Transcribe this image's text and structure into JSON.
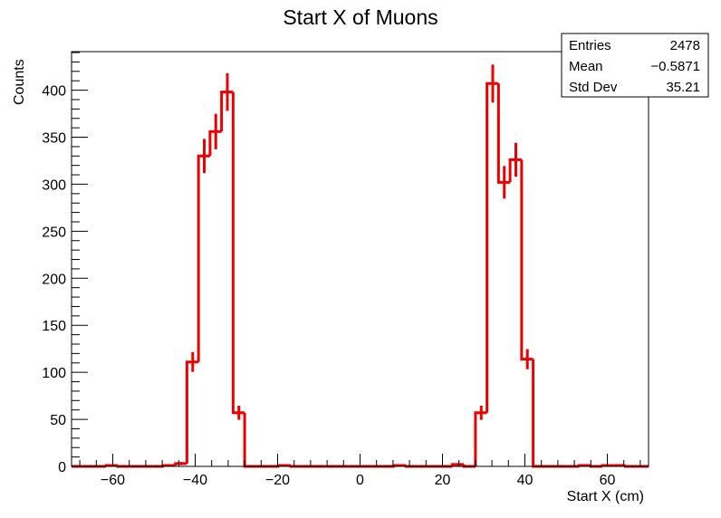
{
  "chart_data": {
    "type": "bar",
    "title": "Start X of Muons",
    "xlabel": "Start X (cm)",
    "ylabel": "Counts",
    "xlim": [
      -70,
      70
    ],
    "ylim": [
      0,
      441
    ],
    "bin_width": 2.8,
    "bin_lows": [
      -70,
      -67.2,
      -64.4,
      -61.6,
      -58.8,
      -56,
      -53.2,
      -50.4,
      -47.6,
      -44.8,
      -42,
      -39.2,
      -36.4,
      -33.6,
      -30.8,
      -28,
      -25.2,
      -22.4,
      -19.6,
      -16.8,
      -14,
      -11.2,
      -8.4,
      -5.6,
      -2.8,
      0,
      2.8,
      5.6,
      8.4,
      11.2,
      14,
      16.8,
      19.6,
      22.4,
      25.2,
      28,
      30.8,
      33.6,
      36.4,
      39.2,
      42,
      44.8,
      47.6,
      50.4,
      53.2,
      56,
      58.8,
      61.6,
      64.4,
      67.2
    ],
    "values": [
      0,
      0,
      0,
      1,
      0,
      0,
      0,
      0,
      1,
      3,
      111,
      330,
      356,
      398,
      57,
      0,
      0,
      0,
      1,
      0,
      0,
      0,
      0,
      0,
      0,
      0,
      0,
      0,
      1,
      0,
      0,
      0,
      0,
      2,
      0,
      57,
      407,
      302,
      326,
      114,
      0,
      0,
      0,
      0,
      1,
      0,
      1,
      1,
      0,
      0
    ],
    "line_color": "#ee0000",
    "x_ticks": [
      -60,
      -40,
      -20,
      0,
      20,
      40,
      60
    ],
    "x_tick_labels": [
      "−60",
      "−40",
      "−20",
      "0",
      "20",
      "40",
      "60"
    ],
    "y_ticks": [
      0,
      50,
      100,
      150,
      200,
      250,
      300,
      350,
      400
    ],
    "y_tick_labels": [
      "0",
      "50",
      "100",
      "150",
      "200",
      "250",
      "300",
      "350",
      "400"
    ],
    "grid": false,
    "legend": "none",
    "stats_box": {
      "placement": "top-right",
      "rows": [
        {
          "label": "Entries",
          "value": "2478"
        },
        {
          "label": "Mean",
          "value": "−0.5871"
        },
        {
          "label": "Std Dev",
          "value": "35.21"
        }
      ]
    }
  }
}
